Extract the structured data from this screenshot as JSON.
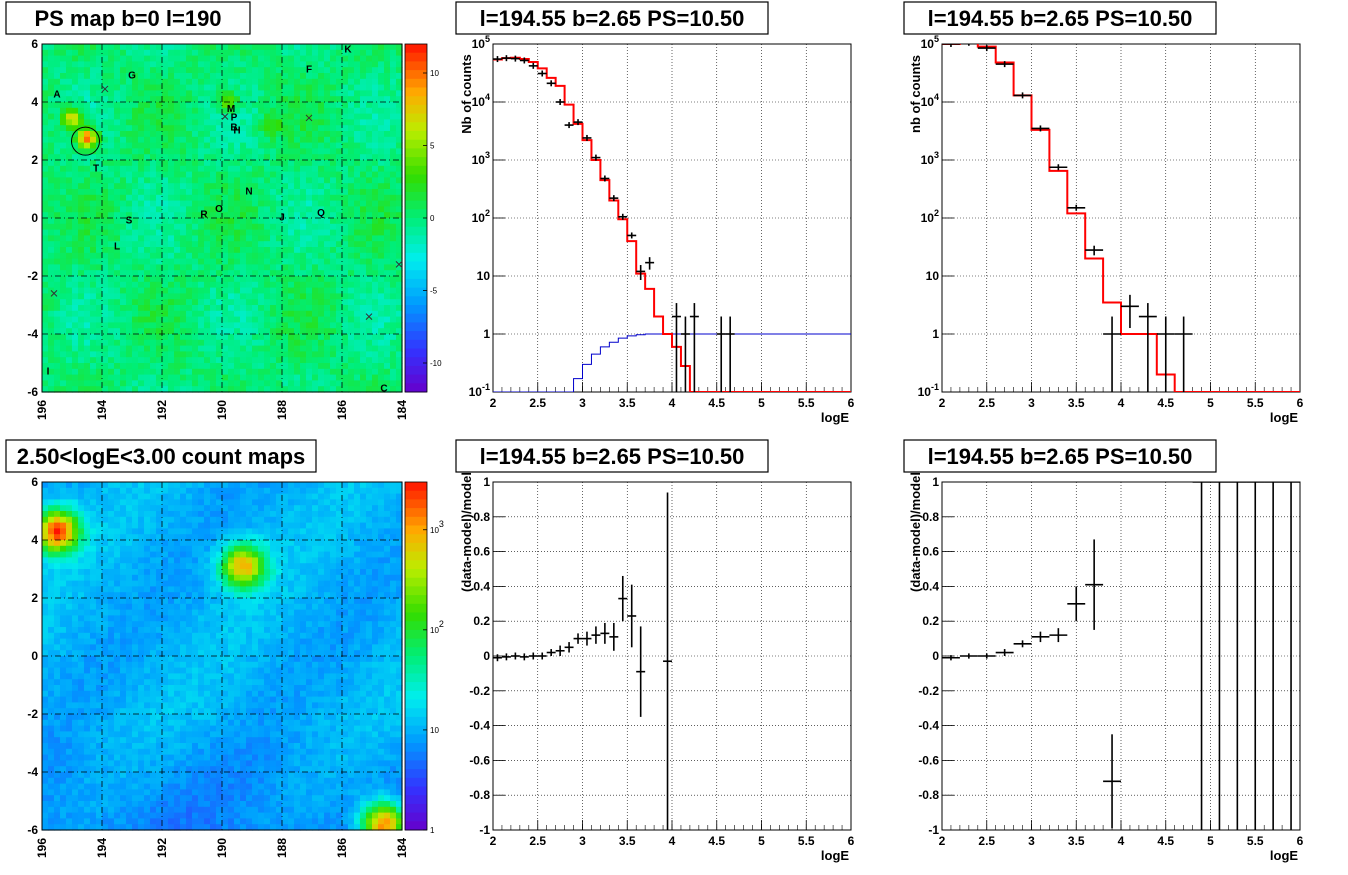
{
  "colors": {
    "data": "#000000",
    "model": "#ff0000",
    "efficiency": "#0000cc",
    "grid": "#000000",
    "marker_circle": "#000000"
  },
  "chart_data": [
    {
      "id": "ps_map",
      "type": "heatmap",
      "title": "PS map b=0 l=190",
      "x_ticks": [
        "196",
        "194",
        "192",
        "190",
        "188",
        "186",
        "184"
      ],
      "y_ticks": [
        "-6",
        "-4",
        "-2",
        "0",
        "2",
        "4",
        "6"
      ],
      "xlim": [
        196,
        184
      ],
      "ylim": [
        -6,
        6
      ],
      "colorbar": {
        "min": -12,
        "max": 12,
        "ticks": [
          "10",
          "5",
          "0",
          "-5",
          "-10"
        ]
      },
      "sources": [
        {
          "label": "A",
          "l": 195.5,
          "b": 4.3
        },
        {
          "label": "G",
          "l": 193.0,
          "b": 4.95
        },
        {
          "label": "F",
          "l": 187.1,
          "b": 5.15
        },
        {
          "label": "K",
          "l": 185.8,
          "b": 5.85
        },
        {
          "label": "M",
          "l": 189.7,
          "b": 3.8
        },
        {
          "label": "P",
          "l": 189.6,
          "b": 3.5
        },
        {
          "label": "B",
          "l": 189.6,
          "b": 3.15
        },
        {
          "label": "H",
          "l": 189.5,
          "b": 3.05
        },
        {
          "label": "T",
          "l": 194.2,
          "b": 1.75
        },
        {
          "label": "N",
          "l": 189.1,
          "b": 0.95
        },
        {
          "label": "O",
          "l": 190.1,
          "b": 0.35
        },
        {
          "label": "R",
          "l": 190.6,
          "b": 0.15
        },
        {
          "label": "Q",
          "l": 186.7,
          "b": 0.2
        },
        {
          "label": "J",
          "l": 188.0,
          "b": 0.05
        },
        {
          "label": "S",
          "l": 193.1,
          "b": -0.05
        },
        {
          "label": "L",
          "l": 193.5,
          "b": -0.95
        },
        {
          "label": "I",
          "l": 195.8,
          "b": -5.25
        },
        {
          "label": "C",
          "l": 184.6,
          "b": -5.85
        }
      ],
      "crosses": [
        {
          "l": 189.9,
          "b": 3.5
        },
        {
          "l": 187.1,
          "b": 3.45
        },
        {
          "l": 195.6,
          "b": -2.6
        },
        {
          "l": 185.1,
          "b": -3.4
        },
        {
          "l": 184.1,
          "b": -1.6
        },
        {
          "l": 193.9,
          "b": 4.45
        }
      ],
      "circle": {
        "l": 194.55,
        "b": 2.65
      },
      "hotspots": [
        {
          "l": 194.5,
          "b": 2.75,
          "level": 11
        },
        {
          "l": 195.0,
          "b": 3.45,
          "level": 8
        },
        {
          "l": 189.8,
          "b": 4.05,
          "level": 5
        },
        {
          "l": 188.4,
          "b": 3.2,
          "level": 3
        }
      ]
    },
    {
      "id": "spectrum_1",
      "type": "line",
      "title": "l=194.55 b=2.65 PS=10.50",
      "xlabel": "logE",
      "ylabel": "Nb of counts",
      "xlim": [
        2,
        6
      ],
      "ylim": [
        0.1,
        100000
      ],
      "log_y": true,
      "grid": true,
      "x_ticks": [
        "2",
        "2.5",
        "3",
        "3.5",
        "4",
        "4.5",
        "5",
        "5.5",
        "6"
      ],
      "y_ticks": [
        "10^{-1}",
        "1",
        "10",
        "10^{2}",
        "10^{3}",
        "10^{4}",
        "10^{5}"
      ],
      "data": [
        {
          "x": 2.05,
          "y": 55000
        },
        {
          "x": 2.15,
          "y": 57000
        },
        {
          "x": 2.25,
          "y": 56000
        },
        {
          "x": 2.35,
          "y": 52000
        },
        {
          "x": 2.45,
          "y": 42000
        },
        {
          "x": 2.55,
          "y": 31000
        },
        {
          "x": 2.65,
          "y": 21000
        },
        {
          "x": 2.75,
          "y": 10000
        },
        {
          "x": 2.85,
          "y": 4000
        },
        {
          "x": 2.95,
          "y": 4500
        },
        {
          "x": 3.05,
          "y": 2400
        },
        {
          "x": 3.15,
          "y": 1100
        },
        {
          "x": 3.25,
          "y": 480
        },
        {
          "x": 3.35,
          "y": 220
        },
        {
          "x": 3.45,
          "y": 105
        },
        {
          "x": 3.55,
          "y": 50
        },
        {
          "x": 3.65,
          "y": 12
        },
        {
          "x": 3.75,
          "y": 17
        },
        {
          "x": 4.05,
          "y": 2
        },
        {
          "x": 4.15,
          "y": 1
        },
        {
          "x": 4.25,
          "y": 2
        },
        {
          "x": 4.55,
          "y": 1
        },
        {
          "x": 4.65,
          "y": 1
        }
      ],
      "model": [
        {
          "x": 2.0,
          "y": 54000
        },
        {
          "x": 2.1,
          "y": 57000
        },
        {
          "x": 2.2,
          "y": 58000
        },
        {
          "x": 2.3,
          "y": 55000
        },
        {
          "x": 2.4,
          "y": 49000
        },
        {
          "x": 2.5,
          "y": 38000
        },
        {
          "x": 2.6,
          "y": 26000
        },
        {
          "x": 2.7,
          "y": 19000
        },
        {
          "x": 2.8,
          "y": 9000
        },
        {
          "x": 2.9,
          "y": 4200
        },
        {
          "x": 3.0,
          "y": 2200
        },
        {
          "x": 3.1,
          "y": 1000
        },
        {
          "x": 3.2,
          "y": 450
        },
        {
          "x": 3.3,
          "y": 200
        },
        {
          "x": 3.4,
          "y": 95
        },
        {
          "x": 3.5,
          "y": 40
        },
        {
          "x": 3.6,
          "y": 11
        },
        {
          "x": 3.7,
          "y": 6
        },
        {
          "x": 3.8,
          "y": 2
        },
        {
          "x": 3.9,
          "y": 1
        },
        {
          "x": 4.0,
          "y": 0.6
        },
        {
          "x": 4.1,
          "y": 0.28
        },
        {
          "x": 4.2,
          "y": 0.1
        },
        {
          "x": 6.0,
          "y": 0.1
        }
      ],
      "efficiency": [
        {
          "x": 2.0,
          "y": 0.1
        },
        {
          "x": 2.8,
          "y": 0.1
        },
        {
          "x": 2.9,
          "y": 0.17
        },
        {
          "x": 3.0,
          "y": 0.3
        },
        {
          "x": 3.1,
          "y": 0.45
        },
        {
          "x": 3.2,
          "y": 0.6
        },
        {
          "x": 3.3,
          "y": 0.72
        },
        {
          "x": 3.4,
          "y": 0.85
        },
        {
          "x": 3.5,
          "y": 0.93
        },
        {
          "x": 3.6,
          "y": 0.97
        },
        {
          "x": 3.7,
          "y": 1.0
        },
        {
          "x": 6.0,
          "y": 1.0
        }
      ]
    },
    {
      "id": "spectrum_2",
      "type": "line",
      "title": "l=194.55 b=2.65 PS=10.50",
      "xlabel": "logE",
      "ylabel": "nb of counts",
      "xlim": [
        2,
        6
      ],
      "ylim": [
        0.1,
        100000
      ],
      "log_y": true,
      "grid": true,
      "x_ticks": [
        "2",
        "2.5",
        "3",
        "3.5",
        "4",
        "4.5",
        "5",
        "5.5",
        "6"
      ],
      "y_ticks": [
        "10^{-1}",
        "1",
        "10",
        "10^{2}",
        "10^{3}",
        "10^{4}",
        "10^{5}"
      ],
      "data": [
        {
          "x": 2.1,
          "y": 100000
        },
        {
          "x": 2.3,
          "y": 105000
        },
        {
          "x": 2.5,
          "y": 85000
        },
        {
          "x": 2.7,
          "y": 45000
        },
        {
          "x": 2.9,
          "y": 13000
        },
        {
          "x": 3.1,
          "y": 3500
        },
        {
          "x": 3.3,
          "y": 750
        },
        {
          "x": 3.5,
          "y": 150
        },
        {
          "x": 3.7,
          "y": 28
        },
        {
          "x": 3.9,
          "y": 1
        },
        {
          "x": 4.1,
          "y": 3
        },
        {
          "x": 4.3,
          "y": 2
        },
        {
          "x": 4.5,
          "y": 1
        },
        {
          "x": 4.7,
          "y": 1
        }
      ],
      "model": [
        {
          "x": 2.0,
          "y": 100000
        },
        {
          "x": 2.2,
          "y": 105000
        },
        {
          "x": 2.4,
          "y": 90000
        },
        {
          "x": 2.6,
          "y": 48000
        },
        {
          "x": 2.8,
          "y": 13000
        },
        {
          "x": 3.0,
          "y": 3300
        },
        {
          "x": 3.2,
          "y": 650
        },
        {
          "x": 3.4,
          "y": 120
        },
        {
          "x": 3.6,
          "y": 20
        },
        {
          "x": 3.8,
          "y": 3.5
        },
        {
          "x": 4.0,
          "y": 1
        },
        {
          "x": 4.2,
          "y": 1
        },
        {
          "x": 4.4,
          "y": 0.2
        },
        {
          "x": 4.6,
          "y": 0.1
        },
        {
          "x": 6.0,
          "y": 0.1
        }
      ]
    },
    {
      "id": "count_map",
      "type": "heatmap",
      "title": "2.50<logE<3.00 count maps",
      "x_ticks": [
        "196",
        "194",
        "192",
        "190",
        "188",
        "186",
        "184"
      ],
      "y_ticks": [
        "-6",
        "-4",
        "-2",
        "0",
        "2",
        "4",
        "6"
      ],
      "xlim": [
        196,
        184
      ],
      "ylim": [
        -6,
        6
      ],
      "log_z": true,
      "colorbar": {
        "min": 1,
        "max": 3000,
        "ticks": [
          "10^{3}",
          "10^{2}",
          "10",
          "1"
        ]
      },
      "hotspots": [
        {
          "l": 195.5,
          "b": 4.3,
          "level": 3000
        },
        {
          "l": 189.3,
          "b": 3.1,
          "level": 700
        },
        {
          "l": 184.6,
          "b": -5.8,
          "level": 2500
        }
      ]
    },
    {
      "id": "residual_1",
      "type": "scatter",
      "title": "l=194.55 b=2.65 PS=10.50",
      "xlabel": "logE",
      "ylabel": "(data-model)/model",
      "xlim": [
        2,
        6
      ],
      "ylim": [
        -1,
        1
      ],
      "grid": true,
      "x_ticks": [
        "2",
        "2.5",
        "3",
        "3.5",
        "4",
        "4.5",
        "5",
        "5.5",
        "6"
      ],
      "y_ticks": [
        "-1",
        "-0.8",
        "-0.6",
        "-0.4",
        "-0.2",
        "0",
        "0.2",
        "0.4",
        "0.6",
        "0.8",
        "1"
      ],
      "points": [
        {
          "x": 2.05,
          "y": -0.01,
          "err": 0.02
        },
        {
          "x": 2.15,
          "y": -0.005,
          "err": 0.02
        },
        {
          "x": 2.25,
          "y": 0.0,
          "err": 0.02
        },
        {
          "x": 2.35,
          "y": -0.005,
          "err": 0.02
        },
        {
          "x": 2.45,
          "y": 0.0,
          "err": 0.02
        },
        {
          "x": 2.55,
          "y": 0.0,
          "err": 0.02
        },
        {
          "x": 2.65,
          "y": 0.02,
          "err": 0.02
        },
        {
          "x": 2.75,
          "y": 0.03,
          "err": 0.03
        },
        {
          "x": 2.85,
          "y": 0.05,
          "err": 0.03
        },
        {
          "x": 2.95,
          "y": 0.1,
          "err": 0.03
        },
        {
          "x": 3.05,
          "y": 0.1,
          "err": 0.04
        },
        {
          "x": 3.15,
          "y": 0.12,
          "err": 0.05
        },
        {
          "x": 3.25,
          "y": 0.13,
          "err": 0.06
        },
        {
          "x": 3.35,
          "y": 0.11,
          "err": 0.08
        },
        {
          "x": 3.45,
          "y": 0.33,
          "err": 0.13
        },
        {
          "x": 3.55,
          "y": 0.23,
          "err": 0.18
        },
        {
          "x": 3.65,
          "y": -0.09,
          "err": 0.26
        },
        {
          "x": 3.95,
          "y": -0.03,
          "err": 0.97
        }
      ]
    },
    {
      "id": "residual_2",
      "type": "scatter",
      "title": "l=194.55 b=2.65 PS=10.50",
      "xlabel": "logE",
      "ylabel": "(data-model)/model",
      "xlim": [
        2,
        6
      ],
      "ylim": [
        -1,
        1
      ],
      "grid": true,
      "x_ticks": [
        "2",
        "2.5",
        "3",
        "3.5",
        "4",
        "4.5",
        "5",
        "5.5",
        "6"
      ],
      "y_ticks": [
        "-1",
        "-0.8",
        "-0.6",
        "-0.4",
        "-0.2",
        "0",
        "0.2",
        "0.4",
        "0.6",
        "0.8",
        "1"
      ],
      "points": [
        {
          "x": 2.1,
          "y": -0.01,
          "err": 0.015
        },
        {
          "x": 2.3,
          "y": 0.0,
          "err": 0.015
        },
        {
          "x": 2.5,
          "y": 0.0,
          "err": 0.015
        },
        {
          "x": 2.7,
          "y": 0.02,
          "err": 0.02
        },
        {
          "x": 2.9,
          "y": 0.07,
          "err": 0.02
        },
        {
          "x": 3.1,
          "y": 0.11,
          "err": 0.03
        },
        {
          "x": 3.3,
          "y": 0.12,
          "err": 0.04
        },
        {
          "x": 3.5,
          "y": 0.3,
          "err": 0.1
        },
        {
          "x": 3.7,
          "y": 0.41,
          "err": 0.26
        },
        {
          "x": 3.9,
          "y": -0.72,
          "err": 0.27
        },
        {
          "x": 4.9,
          "y": 1.0,
          "err": 2.0
        },
        {
          "x": 5.1,
          "y": 1.0,
          "err": 2.0
        },
        {
          "x": 5.3,
          "y": 1.0,
          "err": 2.0
        },
        {
          "x": 5.5,
          "y": 1.0,
          "err": 2.0
        },
        {
          "x": 5.7,
          "y": 1.0,
          "err": 2.0
        },
        {
          "x": 5.9,
          "y": 1.0,
          "err": 2.0
        }
      ]
    }
  ]
}
